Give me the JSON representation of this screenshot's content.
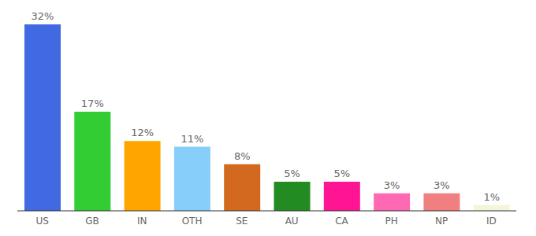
{
  "chart_data": {
    "type": "bar",
    "categories": [
      "US",
      "GB",
      "IN",
      "OTH",
      "SE",
      "AU",
      "CA",
      "PH",
      "NP",
      "ID"
    ],
    "values": [
      32,
      17,
      12,
      11,
      8,
      5,
      5,
      3,
      3,
      1
    ],
    "value_labels": [
      "32%",
      "17%",
      "12%",
      "11%",
      "8%",
      "5%",
      "5%",
      "3%",
      "3%",
      "1%"
    ],
    "colors": [
      "#4169e1",
      "#32cd32",
      "#ffa500",
      "#87cefa",
      "#d2691e",
      "#228b22",
      "#ff1493",
      "#ff69b4",
      "#f08080",
      "#f5f5dc"
    ],
    "data_labels": true,
    "tick_labels": "x"
  }
}
